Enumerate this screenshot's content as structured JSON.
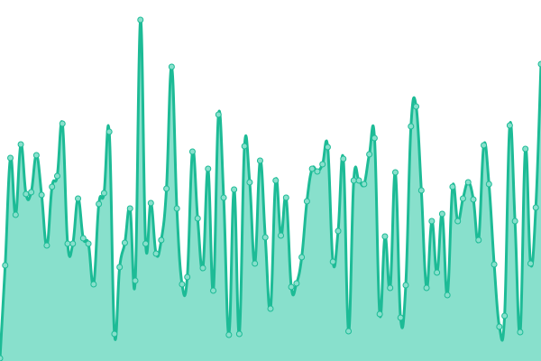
{
  "chart_data": {
    "type": "area",
    "color": "#1dbb96",
    "fill": "#88e0cc",
    "ylim": [
      0,
      400
    ],
    "values": [
      3,
      106,
      225,
      162,
      240,
      185,
      187,
      228,
      184,
      128,
      193,
      205,
      263,
      130,
      130,
      180,
      136,
      130,
      85,
      174,
      186,
      254,
      30,
      104,
      131,
      169,
      89,
      378,
      130,
      175,
      119,
      134,
      191,
      326,
      169,
      85,
      93,
      232,
      158,
      103,
      213,
      78,
      273,
      181,
      29,
      190,
      30,
      238,
      198,
      108,
      222,
      137,
      58,
      200,
      139,
      181,
      82,
      86,
      115,
      177,
      213,
      210,
      218,
      237,
      110,
      144,
      224,
      33,
      200,
      200,
      196,
      229,
      247,
      52,
      138,
      81,
      209,
      48,
      84,
      260,
      282,
      189,
      81,
      155,
      98,
      163,
      73,
      193,
      155,
      180,
      198,
      179,
      134,
      239,
      196,
      107,
      38,
      50,
      261,
      155,
      32,
      235,
      108,
      170,
      329
    ]
  }
}
